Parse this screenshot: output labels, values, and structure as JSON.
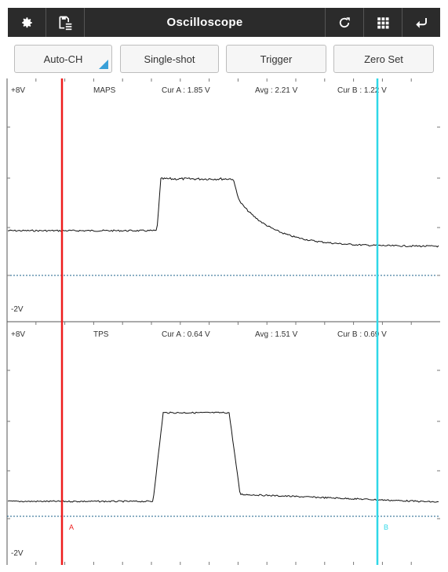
{
  "app": {
    "title": "Oscilloscope",
    "icons": [
      "gear-icon",
      "save-list-icon",
      "refresh-icon",
      "grid-icon",
      "back-icon"
    ]
  },
  "toolbar": {
    "auto_ch": "Auto-CH",
    "single_shot": "Single-shot",
    "trigger": "Trigger",
    "zero_set": "Zero Set"
  },
  "cursors": {
    "a_label": "A",
    "b_label": "B",
    "a_color": "#ee1c1c",
    "b_color": "#2fd8e8"
  },
  "channels": [
    {
      "name": "MAPS",
      "ymax_label": "+8V",
      "ymin_label": "-2V",
      "cur_a": "Cur A : 1.85 V",
      "avg": "Avg : 2.21 V",
      "cur_b": "Cur B : 1.22 V"
    },
    {
      "name": "TPS",
      "ymax_label": "+8V",
      "ymin_label": "-2V",
      "cur_a": "Cur A : 0.64 V",
      "avg": "Avg : 1.51 V",
      "cur_b": "Cur B : 0.69 V"
    }
  ],
  "colors": {
    "topbar": "#2b2b2b",
    "trace": "#111111",
    "zero_line": "#1a5f8a",
    "accent": "#3aa0d8"
  }
}
